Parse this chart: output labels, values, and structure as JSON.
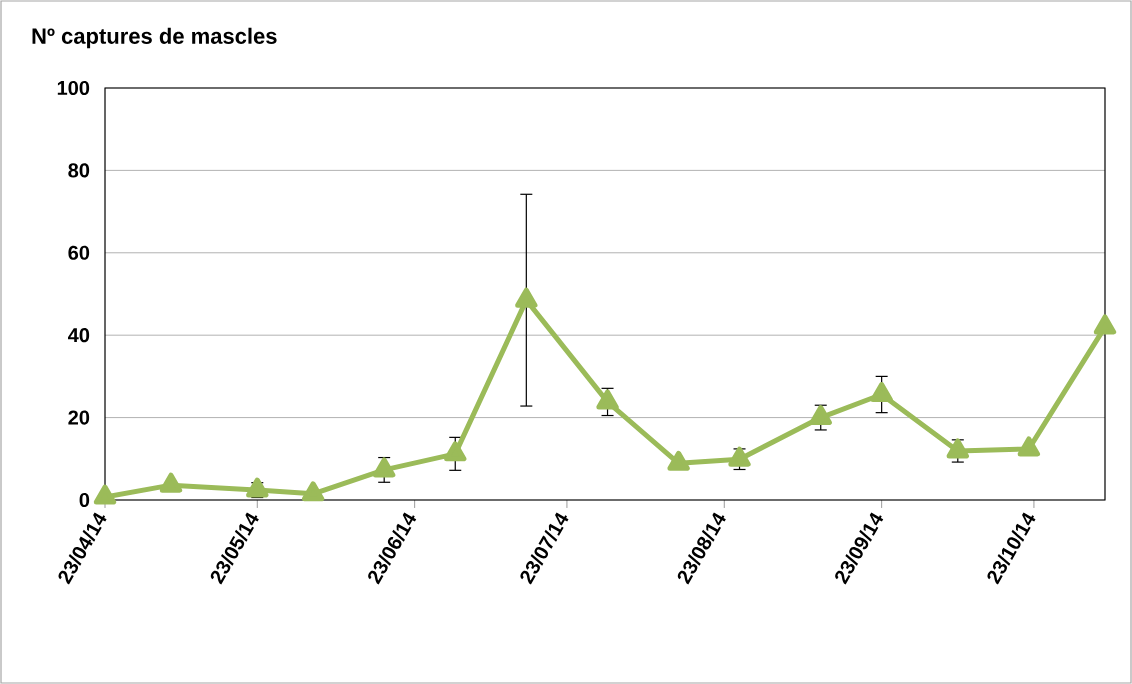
{
  "chart_data": {
    "type": "line",
    "title": "Nº captures de mascles",
    "x": [
      "2014-04-23",
      "2014-05-06",
      "2014-05-23",
      "2014-06-03",
      "2014-06-17",
      "2014-07-01",
      "2014-07-15",
      "2014-07-31",
      "2014-08-14",
      "2014-08-26",
      "2014-09-11",
      "2014-09-23",
      "2014-10-08",
      "2014-10-22",
      "2014-11-06"
    ],
    "series": [
      {
        "color": "#9bbb59",
        "values": [
          0.7,
          3.6,
          2.4,
          1.5,
          7.3,
          11.2,
          48.5,
          23.8,
          8.9,
          9.9,
          20,
          25.6,
          11.9,
          12.4,
          42
        ],
        "errors": [
          null,
          null,
          1.8,
          null,
          3,
          4,
          25.7,
          3.3,
          null,
          2.5,
          3,
          4.4,
          2.7,
          null,
          null
        ]
      }
    ],
    "xlim": [
      "2014-04-23",
      "2014-11-06"
    ],
    "xticks": [
      {
        "value": "2014-04-23",
        "label": "23/04/14"
      },
      {
        "value": "2014-05-23",
        "label": "23/05/14"
      },
      {
        "value": "2014-06-23",
        "label": "23/06/14"
      },
      {
        "value": "2014-07-23",
        "label": "23/07/14"
      },
      {
        "value": "2014-08-23",
        "label": "23/08/14"
      },
      {
        "value": "2014-09-23",
        "label": "23/09/14"
      },
      {
        "value": "2014-10-23",
        "label": "23/10/14"
      }
    ],
    "ylim": [
      0,
      100
    ],
    "yticks": [
      0,
      20,
      40,
      60,
      80,
      100
    ],
    "grid": "y",
    "marker": "triangle",
    "line_style": "solid"
  }
}
